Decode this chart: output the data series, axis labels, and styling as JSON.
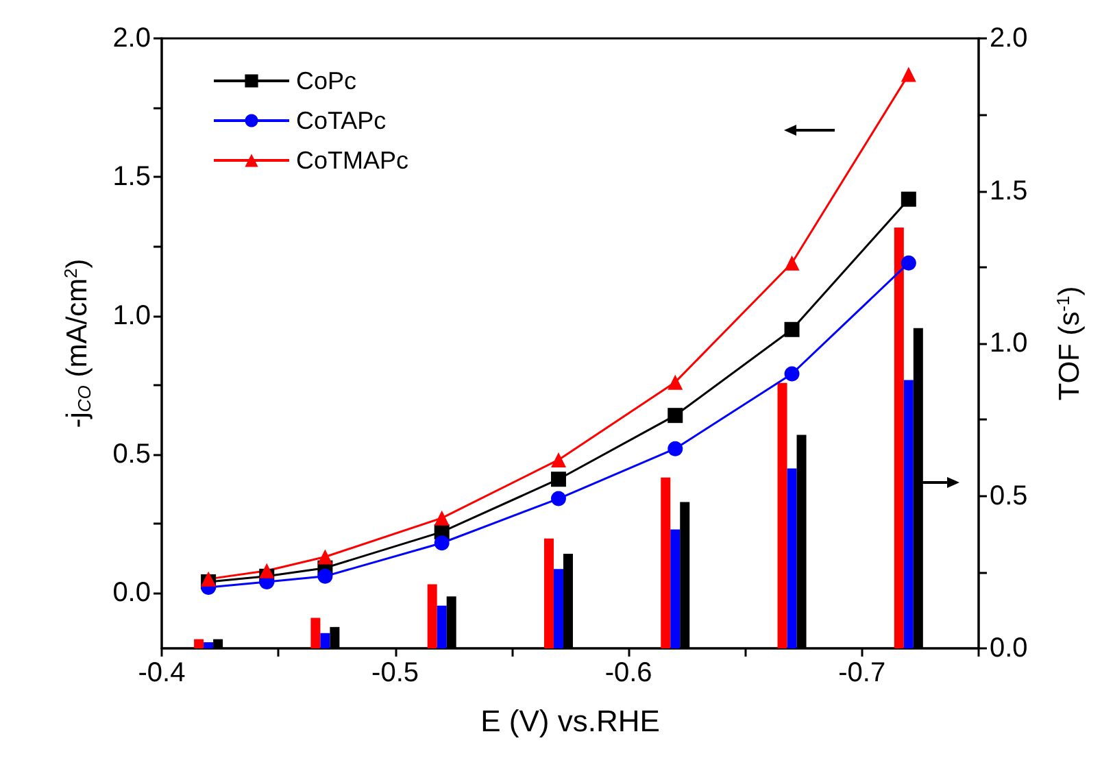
{
  "chart_data": {
    "type": "line",
    "xlabel": "E (V) vs.RHE",
    "ylabel": "-j$_{CO}$ (mA/cm$^{2}$)",
    "y2label": "TOF (s$^{-1}$)",
    "xlim": [
      -0.4,
      -0.75
    ],
    "xticks": [
      {
        "value": -0.4,
        "label": "-0.4"
      },
      {
        "value": -0.45,
        "label": null
      },
      {
        "value": -0.5,
        "label": "-0.5"
      },
      {
        "value": -0.55,
        "label": null
      },
      {
        "value": -0.6,
        "label": "-0.6"
      },
      {
        "value": -0.65,
        "label": null
      },
      {
        "value": -0.7,
        "label": "-0.7"
      },
      {
        "value": -0.75,
        "label": null
      }
    ],
    "ylim": [
      -0.2,
      2.0
    ],
    "yticks": [
      {
        "value": 0,
        "label": "0.0"
      },
      {
        "value": 0.25,
        "label": null
      },
      {
        "value": 0.5,
        "label": "0.5"
      },
      {
        "value": 0.75,
        "label": null
      },
      {
        "value": 1,
        "label": "1.0"
      },
      {
        "value": 1.25,
        "label": null
      },
      {
        "value": 1.5,
        "label": "1.5"
      },
      {
        "value": 1.75,
        "label": null
      },
      {
        "value": 2,
        "label": "2.0"
      }
    ],
    "y2lim": [
      0,
      2.0
    ],
    "y2ticks": [
      {
        "value": 0,
        "label": "0.0"
      },
      {
        "value": 0.25,
        "label": null
      },
      {
        "value": 0.5,
        "label": "0.5"
      },
      {
        "value": 0.75,
        "label": null
      },
      {
        "value": 1,
        "label": "1.0"
      },
      {
        "value": 1.25,
        "label": null
      },
      {
        "value": 1.5,
        "label": "1.5"
      },
      {
        "value": 1.75,
        "label": null
      },
      {
        "value": 2,
        "label": "2.0"
      }
    ],
    "legend": "top left",
    "series": [
      {
        "name": "CoPc",
        "color": "#000000",
        "marker": "square",
        "x": [
          -0.42,
          -0.445,
          -0.47,
          -0.52,
          -0.57,
          -0.62,
          -0.67,
          -0.72
        ],
        "values": [
          0.04,
          0.06,
          0.09,
          0.22,
          0.41,
          0.64,
          0.95,
          1.42
        ]
      },
      {
        "name": "CoTAPc",
        "color": "#0000ff",
        "marker": "circle",
        "x": [
          -0.42,
          -0.445,
          -0.47,
          -0.52,
          -0.57,
          -0.62,
          -0.67,
          -0.72
        ],
        "values": [
          0.02,
          0.04,
          0.06,
          0.18,
          0.34,
          0.52,
          0.79,
          1.19
        ]
      },
      {
        "name": "CoTMAPc",
        "color": "#ff0000",
        "marker": "triangle",
        "x": [
          -0.42,
          -0.445,
          -0.47,
          -0.52,
          -0.57,
          -0.62,
          -0.67,
          -0.72
        ],
        "values": [
          0.05,
          0.08,
          0.13,
          0.27,
          0.48,
          0.76,
          1.19,
          1.87
        ]
      },
      {
        "type": "bar",
        "axis": "y2",
        "color": "#ff0000",
        "x": [
          -0.42,
          -0.47,
          -0.52,
          -0.57,
          -0.62,
          -0.67,
          -0.72
        ],
        "values": [
          0.03,
          0.1,
          0.21,
          0.36,
          0.56,
          0.87,
          1.38
        ]
      },
      {
        "type": "bar",
        "axis": "y2",
        "color": "#0000ff",
        "x": [
          -0.42,
          -0.47,
          -0.52,
          -0.57,
          -0.62,
          -0.67,
          -0.72
        ],
        "values": [
          0.02,
          0.05,
          0.14,
          0.26,
          0.39,
          0.59,
          0.88
        ]
      },
      {
        "type": "bar",
        "axis": "y2",
        "color": "#000000",
        "x": [
          -0.42,
          -0.47,
          -0.52,
          -0.57,
          -0.62,
          -0.67,
          -0.72
        ],
        "values": [
          0.03,
          0.07,
          0.17,
          0.31,
          0.48,
          0.7,
          1.05
        ]
      }
    ]
  }
}
